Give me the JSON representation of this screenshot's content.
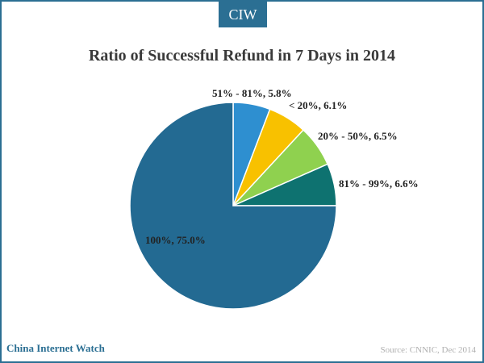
{
  "logo": {
    "text": "CIW"
  },
  "footer": {
    "brand": "China Internet Watch",
    "source": "Source: CNNIC, Dec 2014"
  },
  "chart_data": {
    "type": "pie",
    "title": "Ratio of Successful Refund in 7 Days in 2014",
    "start_angle_deg": 0,
    "direction": "clockwise",
    "slices": [
      {
        "name": "51% - 81%",
        "value": 5.8,
        "label": "51% - 81%, 5.8%",
        "color": "#2e8fd0"
      },
      {
        "name": "< 20%",
        "value": 6.1,
        "label": "< 20%, 6.1%",
        "color": "#f8c100"
      },
      {
        "name": "20% - 50%",
        "value": 6.5,
        "label": "20% - 50%, 6.5%",
        "color": "#8fd14f"
      },
      {
        "name": "81% - 99%",
        "value": 6.6,
        "label": "81% - 99%, 6.6%",
        "color": "#0e7270"
      },
      {
        "name": "100%",
        "value": 75.0,
        "label": "100%, 75.0%",
        "color": "#236a92"
      }
    ]
  }
}
